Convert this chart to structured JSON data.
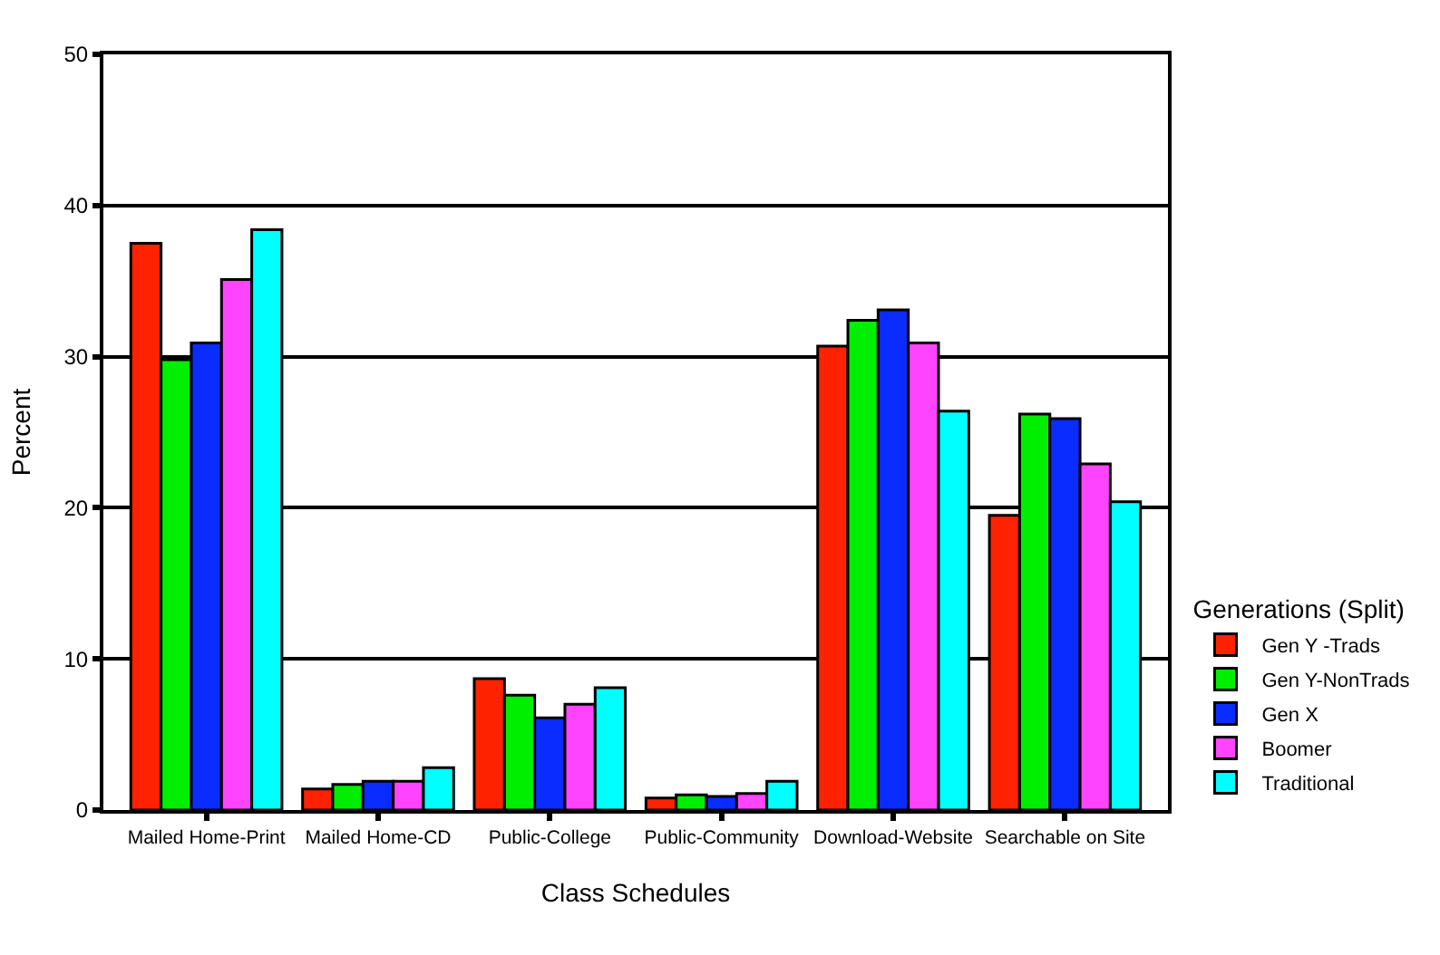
{
  "chart_data": {
    "type": "bar",
    "xlabel": "Class Schedules",
    "ylabel": "Percent",
    "legend_title": "Generations (Split)",
    "categories": [
      "Mailed Home-Print",
      "Mailed Home-CD",
      "Public-College",
      "Public-Community",
      "Download-Website",
      "Searchable on Site"
    ],
    "series": [
      {
        "name": "Gen Y -Trads",
        "color": "#ff2200",
        "values": [
          37.5,
          1.4,
          8.7,
          0.8,
          30.7,
          19.5
        ]
      },
      {
        "name": "Gen Y-NonTrads",
        "color": "#00ee00",
        "values": [
          29.8,
          1.7,
          7.6,
          1.0,
          32.4,
          26.2
        ]
      },
      {
        "name": "Gen X",
        "color": "#0a2cff",
        "values": [
          30.9,
          1.9,
          6.1,
          0.9,
          33.1,
          25.9
        ]
      },
      {
        "name": "Boomer",
        "color": "#ff44ff",
        "values": [
          35.1,
          1.9,
          7.0,
          1.1,
          30.9,
          22.9
        ]
      },
      {
        "name": "Traditional",
        "color": "#00ffff",
        "values": [
          38.4,
          2.8,
          8.1,
          1.9,
          26.4,
          20.4
        ]
      }
    ],
    "ylim": [
      0,
      50
    ],
    "yticks": [
      0,
      10,
      20,
      30,
      40,
      50
    ],
    "grid": "y",
    "legend": "right"
  }
}
